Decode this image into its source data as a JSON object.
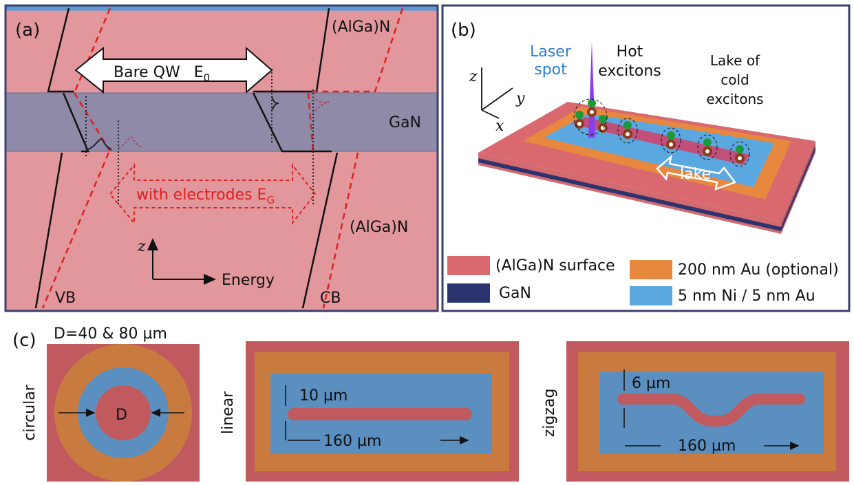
{
  "panel_a": {
    "label": "(a)",
    "barrier_top": "(AlGa)N",
    "well": "GaN",
    "barrier_bottom": "(AlGa)N",
    "bare_arrow": {
      "text": "Bare QW",
      "symbol": "E",
      "subscript": "0"
    },
    "electrode_arrow": {
      "text": "with electrodes E",
      "subscript": "G"
    },
    "axis_z": "z",
    "axis_energy": "Energy",
    "vb": "VB",
    "cb": "CB"
  },
  "panel_b": {
    "label": "(b)",
    "laser": [
      "Laser",
      "spot"
    ],
    "hot": [
      "Hot",
      "excitons"
    ],
    "lake_label": [
      "Lake of",
      "cold",
      "excitons"
    ],
    "axes": {
      "z": "z",
      "y": "y",
      "x": "x"
    },
    "lake": "lake",
    "legend": [
      {
        "text": "(AlGa)N surface"
      },
      {
        "text": "GaN"
      },
      {
        "text": "200 nm Au (optional)"
      },
      {
        "text": "5 nm Ni / 5 nm Au"
      }
    ]
  },
  "panel_c": {
    "label": "(c)",
    "size": "D=40 & 80 µm",
    "circular": {
      "name": "circular",
      "d": "D"
    },
    "linear": {
      "name": "linear",
      "width": "10 µm",
      "length": "160 µm"
    },
    "zigzag": {
      "name": "zigzag",
      "width": "6 µm",
      "length": "160 µm"
    }
  }
}
